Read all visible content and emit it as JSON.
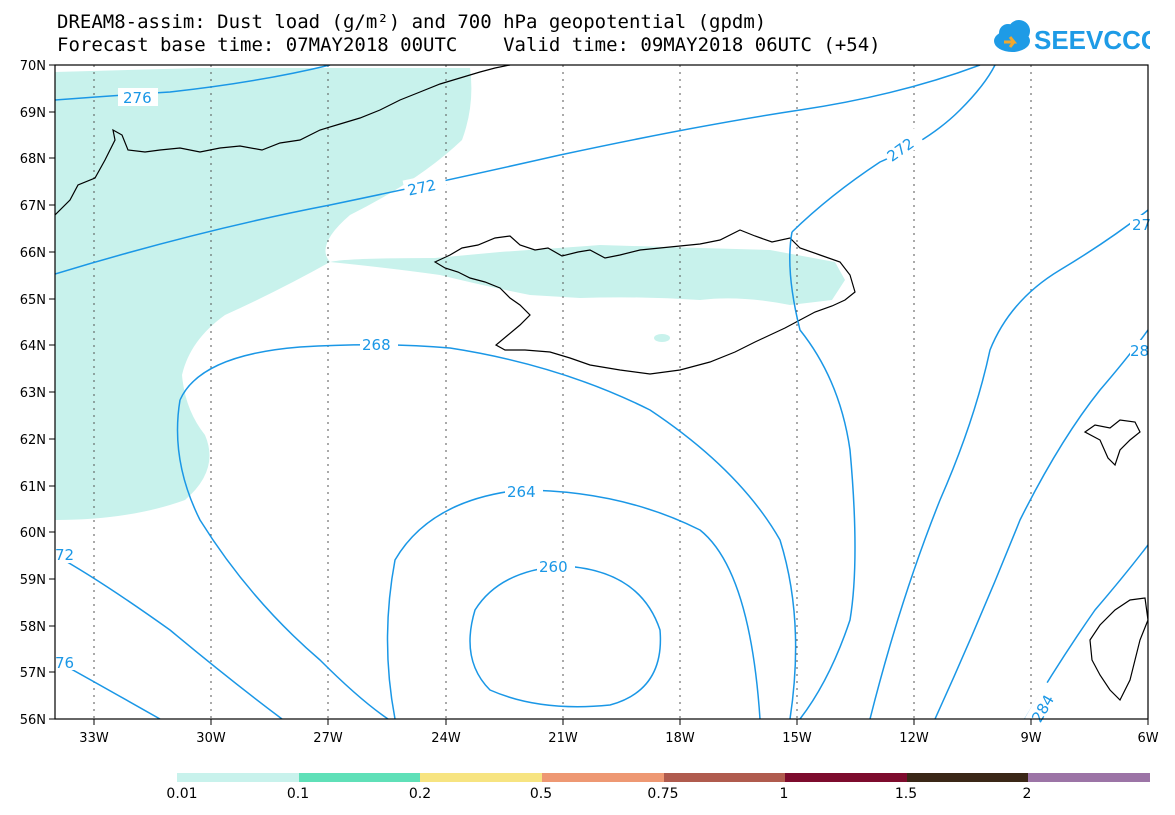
{
  "header": {
    "line1": "DREAM8-assim: Dust load (g/m²) and 700 hPa geopotential (gpdm)",
    "line2": "Forecast base time: 07MAY2018 00UTC    Valid time: 09MAY2018 06UTC (+54)"
  },
  "logo": {
    "text": "SEEVCCC",
    "color": "#1e9be6",
    "icon": "cloud-icon"
  },
  "map": {
    "lat_labels": [
      "70N",
      "69N",
      "68N",
      "67N",
      "66N",
      "65N",
      "64N",
      "63N",
      "62N",
      "61N",
      "60N",
      "59N",
      "58N",
      "57N",
      "56N"
    ],
    "lon_labels": [
      "33W",
      "30W",
      "27W",
      "24W",
      "21W",
      "18W",
      "15W",
      "12W",
      "9W",
      "6W"
    ],
    "lat_range": [
      56,
      70
    ],
    "lon_range": [
      -34,
      -6
    ],
    "gridlines": "dotted",
    "contour_color": "#1a97e6",
    "dust_fill_color": "#c8f2ec",
    "contour_labels": {
      "c276a": "276",
      "c272a": "272",
      "c272b": "272",
      "c272c": "72",
      "c27x": "27",
      "c268": "268",
      "c28x": "28",
      "c264": "264",
      "c260": "260",
      "c276b": "76",
      "c284": "284"
    }
  },
  "colorbar": {
    "colors": [
      "#c8f2ec",
      "#5fe0b8",
      "#f7e481",
      "#ee9873",
      "#b05b4e",
      "#7d0b2d",
      "#3a2717",
      "#9c74a6"
    ],
    "labels": [
      "0.01",
      "0.1",
      "0.2",
      "0.5",
      "0.75",
      "1",
      "1.5",
      "2"
    ]
  }
}
